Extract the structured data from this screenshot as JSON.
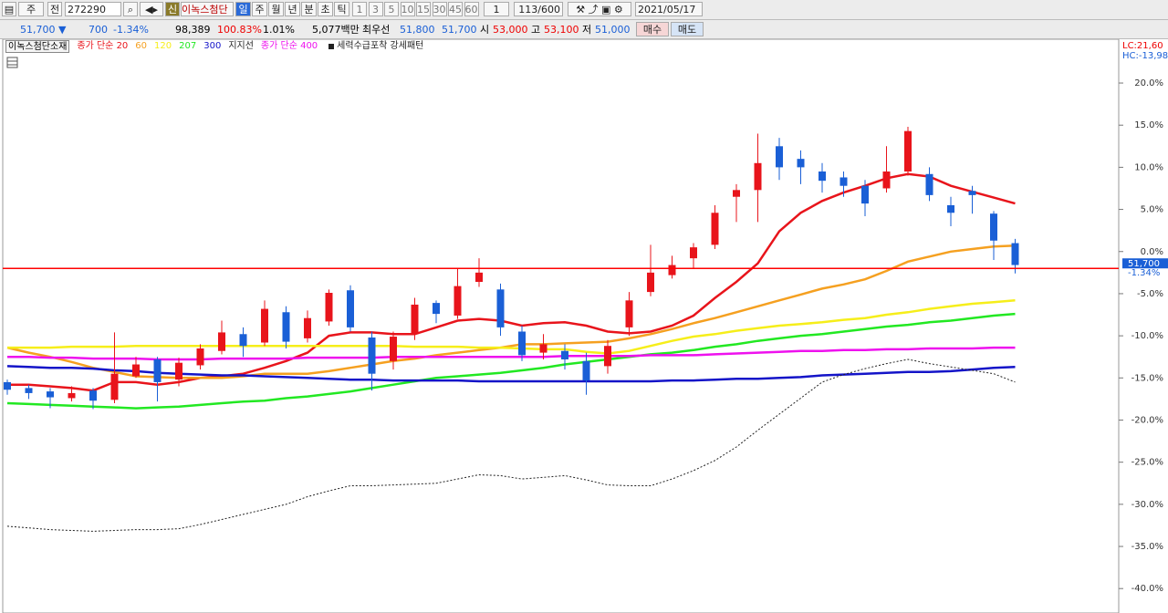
{
  "toolbar": {
    "period_type": "주",
    "prev": "전",
    "code": "272290",
    "new_badge": "신",
    "name": "이녹스첨단",
    "periods": [
      "일",
      "주",
      "월",
      "년",
      "분",
      "초",
      "틱"
    ],
    "intervals": [
      "1",
      "3",
      "5",
      "10",
      "15",
      "30",
      "45",
      "60"
    ],
    "step": "1",
    "count": "113/600",
    "date": "2021/05/17"
  },
  "quote": {
    "price": "51,700 ▼",
    "change": "700",
    "change_rate": "-1.34%",
    "volume": "98,389",
    "volume_rate": "100.83%",
    "turnover_rate": "1.01%",
    "amount": "5,077백만",
    "best": "최우선",
    "ask": "51,800",
    "bid": "51,700",
    "open_label": "시",
    "open": "53,000",
    "high_label": "고",
    "high": "53,100",
    "low_label": "저",
    "low": "51,000",
    "buy": "매수",
    "sell": "매도"
  },
  "chart_data": {
    "type": "candlestick",
    "title": "이녹스첨단소재",
    "lc": "LC:21,60",
    "hc": "HC:-13,98",
    "up_color": "#e8141b",
    "down_color": "#1a5fd6",
    "open": [
      -15.5,
      -16.2,
      -16.6,
      -17.4,
      -16.5,
      -17.6,
      -14.8,
      -12.8,
      -15.2,
      -13.5,
      -11.8,
      -9.8,
      -10.8,
      -7.2,
      -10.3,
      -8.3,
      -4.6,
      -10.2,
      -13.0,
      -9.8,
      -6.1,
      -7.6,
      -3.6,
      -4.5,
      -9.5,
      -12.0,
      -11.8,
      -13.0,
      -13.6,
      -9.0,
      -4.8,
      -2.8,
      -0.8,
      0.8,
      6.5,
      7.3,
      12.5,
      11.0,
      9.5,
      8.8,
      7.8,
      7.5,
      9.5,
      9.2,
      5.5,
      7.2,
      4.5,
      1.0
    ],
    "high": [
      -15.2,
      -15.8,
      -16.2,
      -16.0,
      -16.2,
      -9.6,
      -12.5,
      -12.5,
      -12.6,
      -11.0,
      -8.2,
      -9.0,
      -5.8,
      -6.5,
      -7.0,
      -4.5,
      -4.0,
      -9.5,
      -9.5,
      -5.5,
      -5.8,
      -2.0,
      -0.8,
      -3.8,
      -8.8,
      -9.8,
      -11.0,
      -12.0,
      -10.5,
      -4.8,
      0.8,
      -0.5,
      1.0,
      5.5,
      8.0,
      14.0,
      13.5,
      12.0,
      10.5,
      9.5,
      8.5,
      12.5,
      14.8,
      10.0,
      6.5,
      7.8,
      4.8,
      1.5
    ],
    "low": [
      -17.0,
      -17.5,
      -18.6,
      -17.8,
      -18.7,
      -18.0,
      -15.0,
      -17.8,
      -16.0,
      -14.0,
      -12.2,
      -12.5,
      -11.2,
      -11.5,
      -10.8,
      -8.8,
      -9.5,
      -16.5,
      -14.0,
      -10.5,
      -8.5,
      -8.0,
      -4.2,
      -10.0,
      -13.0,
      -12.8,
      -14.0,
      -17.0,
      -14.5,
      -10.0,
      -5.3,
      -3.2,
      -2.0,
      0.3,
      3.5,
      3.5,
      8.5,
      8.0,
      7.0,
      6.5,
      4.2,
      7.0,
      9.0,
      6.0,
      3.0,
      4.5,
      -1.0,
      -2.6
    ],
    "close": [
      -16.4,
      -16.8,
      -17.3,
      -16.8,
      -17.7,
      -14.5,
      -13.4,
      -15.5,
      -13.2,
      -11.5,
      -9.6,
      -11.2,
      -6.8,
      -10.7,
      -7.9,
      -4.9,
      -9.0,
      -14.5,
      -10.1,
      -6.3,
      -7.4,
      -4.1,
      -2.5,
      -9.0,
      -12.3,
      -11.0,
      -12.8,
      -15.3,
      -11.2,
      -5.8,
      -2.5,
      -1.6,
      0.5,
      4.6,
      7.3,
      10.5,
      10.0,
      10.0,
      8.4,
      7.8,
      5.7,
      9.5,
      14.3,
      6.7,
      4.6,
      6.7,
      1.3,
      -1.6
    ],
    "series": [
      {
        "name": "종가 단순 20",
        "color": "#e8141b",
        "values": [
          -15.8,
          -15.8,
          -16.0,
          -16.2,
          -16.5,
          -15.5,
          -15.5,
          -15.8,
          -15.5,
          -15.0,
          -14.8,
          -14.5,
          -13.8,
          -13.0,
          -12.0,
          -10.0,
          -9.6,
          -9.6,
          -9.8,
          -9.8,
          -9.0,
          -8.2,
          -8.0,
          -8.2,
          -8.8,
          -8.5,
          -8.4,
          -8.8,
          -9.5,
          -9.7,
          -9.5,
          -8.8,
          -7.6,
          -5.5,
          -3.6,
          -1.4,
          2.4,
          4.6,
          6.0,
          7.0,
          7.8,
          8.7,
          9.2,
          8.9,
          7.8,
          7.1,
          6.4,
          5.7
        ]
      },
      {
        "name": "60",
        "color": "#f5a020",
        "values": [
          -11.4,
          -12.0,
          -12.5,
          -13.1,
          -13.8,
          -14.3,
          -14.8,
          -14.9,
          -15.0,
          -15.0,
          -15.0,
          -14.8,
          -14.5,
          -14.5,
          -14.5,
          -14.2,
          -13.8,
          -13.4,
          -13.0,
          -12.7,
          -12.3,
          -12.0,
          -11.7,
          -11.4,
          -11.0,
          -11.0,
          -10.9,
          -10.8,
          -10.7,
          -10.3,
          -9.8,
          -9.2,
          -8.5,
          -7.9,
          -7.2,
          -6.5,
          -5.8,
          -5.1,
          -4.4,
          -3.9,
          -3.3,
          -2.3,
          -1.2,
          -0.6,
          0.0,
          0.3,
          0.6,
          0.7
        ]
      },
      {
        "name": "120",
        "color": "#f6ee1a",
        "values": [
          -11.4,
          -11.4,
          -11.4,
          -11.3,
          -11.3,
          -11.3,
          -11.2,
          -11.2,
          -11.2,
          -11.2,
          -11.2,
          -11.2,
          -11.2,
          -11.2,
          -11.2,
          -11.2,
          -11.2,
          -11.2,
          -11.2,
          -11.3,
          -11.3,
          -11.3,
          -11.4,
          -11.4,
          -11.5,
          -11.6,
          -11.6,
          -11.9,
          -12.1,
          -11.8,
          -11.2,
          -10.6,
          -10.1,
          -9.8,
          -9.4,
          -9.1,
          -8.8,
          -8.6,
          -8.4,
          -8.1,
          -7.9,
          -7.5,
          -7.2,
          -6.8,
          -6.5,
          -6.2,
          -6.0,
          -5.8
        ]
      },
      {
        "name": "207",
        "color": "#22e822",
        "values": [
          -18.0,
          -18.1,
          -18.2,
          -18.3,
          -18.4,
          -18.5,
          -18.6,
          -18.5,
          -18.4,
          -18.2,
          -18.0,
          -17.8,
          -17.7,
          -17.4,
          -17.2,
          -16.9,
          -16.6,
          -16.2,
          -15.8,
          -15.4,
          -15.0,
          -14.8,
          -14.6,
          -14.4,
          -14.1,
          -13.8,
          -13.4,
          -13.1,
          -12.8,
          -12.5,
          -12.2,
          -12.0,
          -11.7,
          -11.3,
          -11.0,
          -10.6,
          -10.3,
          -10.0,
          -9.8,
          -9.5,
          -9.2,
          -8.9,
          -8.7,
          -8.4,
          -8.2,
          -7.9,
          -7.6,
          -7.4
        ]
      },
      {
        "name": "300",
        "color": "#1414c8",
        "values": [
          -13.6,
          -13.7,
          -13.8,
          -13.8,
          -13.9,
          -14.1,
          -14.2,
          -14.4,
          -14.5,
          -14.6,
          -14.7,
          -14.7,
          -14.8,
          -14.9,
          -15.0,
          -15.1,
          -15.2,
          -15.2,
          -15.3,
          -15.3,
          -15.3,
          -15.3,
          -15.4,
          -15.4,
          -15.4,
          -15.4,
          -15.4,
          -15.4,
          -15.4,
          -15.4,
          -15.4,
          -15.3,
          -15.3,
          -15.2,
          -15.1,
          -15.1,
          -15.0,
          -14.9,
          -14.7,
          -14.6,
          -14.5,
          -14.4,
          -14.3,
          -14.3,
          -14.2,
          -14.0,
          -13.8,
          -13.7
        ]
      },
      {
        "name": "지지선",
        "color": "#222222",
        "values": []
      },
      {
        "name": "종가 단순 400",
        "color": "#ee11ee",
        "values": [
          -12.5,
          -12.5,
          -12.6,
          -12.6,
          -12.7,
          -12.7,
          -12.7,
          -12.8,
          -12.8,
          -12.8,
          -12.7,
          -12.7,
          -12.7,
          -12.7,
          -12.6,
          -12.6,
          -12.6,
          -12.6,
          -12.5,
          -12.5,
          -12.5,
          -12.5,
          -12.5,
          -12.5,
          -12.5,
          -12.5,
          -12.4,
          -12.4,
          -12.4,
          -12.4,
          -12.3,
          -12.3,
          -12.3,
          -12.2,
          -12.1,
          -12.0,
          -11.9,
          -11.8,
          -11.8,
          -11.7,
          -11.7,
          -11.6,
          -11.6,
          -11.5,
          -11.5,
          -11.5,
          -11.4,
          -11.4
        ]
      },
      {
        "name": "세력수급포착 강세패턴",
        "color": "#222222",
        "dashed": true,
        "values": [
          -32.6,
          -32.8,
          -33.0,
          -33.1,
          -33.2,
          -33.1,
          -33.0,
          -33.0,
          -32.9,
          -32.4,
          -31.8,
          -31.2,
          -30.6,
          -30.0,
          -29.1,
          -28.4,
          -27.8,
          -27.8,
          -27.7,
          -27.6,
          -27.5,
          -27.0,
          -26.5,
          -26.6,
          -27.0,
          -26.8,
          -26.6,
          -27.1,
          -27.7,
          -27.8,
          -27.8,
          -27.0,
          -26.0,
          -24.8,
          -23.2,
          -21.2,
          -19.3,
          -17.4,
          -15.5,
          -14.6,
          -13.9,
          -13.3,
          -12.8,
          -13.3,
          -13.7,
          -14.1,
          -14.5,
          -15.5
        ]
      }
    ],
    "price_line": {
      "value": -2.0,
      "color": "#ff0000",
      "price": "51,700",
      "change": "-1.34%"
    },
    "ylim": [
      -42.9,
      25.2
    ],
    "yticks": [
      {
        "value": 20,
        "label": "20.0%"
      },
      {
        "value": 15,
        "label": "15.0%"
      },
      {
        "value": 10,
        "label": "10.0%"
      },
      {
        "value": 5,
        "label": "5.0%"
      },
      {
        "value": 0,
        "label": "0.0%"
      },
      {
        "value": -5,
        "label": "-5.0%"
      },
      {
        "value": -10,
        "label": "-10.0%"
      },
      {
        "value": -15,
        "label": "-15.0%"
      },
      {
        "value": -20,
        "label": "-20.0%"
      },
      {
        "value": -25,
        "label": "-25.0%"
      },
      {
        "value": -30,
        "label": "-30.0%"
      },
      {
        "value": -35,
        "label": "-35.0%"
      },
      {
        "value": -40,
        "label": "-40.0%"
      }
    ],
    "grid": false
  }
}
